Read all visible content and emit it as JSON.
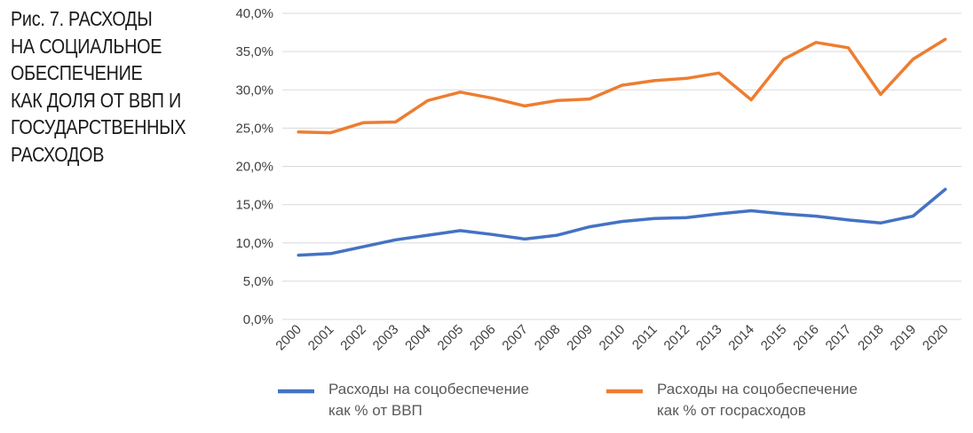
{
  "figure": {
    "title_lines": [
      "Рис. 7. РАСХОДЫ",
      "НА СОЦИАЛЬНОЕ",
      "ОБЕСПЕЧЕНИЕ",
      "КАК ДОЛЯ ОТ ВВП И",
      "ГОСУДАРСТВЕННЫХ",
      "РАСХОДОВ"
    ]
  },
  "chart_data": {
    "type": "line",
    "title": "Рис. 7. РАСХОДЫ НА СОЦИАЛЬНОЕ ОБЕСПЕЧЕНИЕ КАК ДОЛЯ ОТ ВВП И ГОСУДАРСТВЕННЫХ РАСХОДОВ",
    "x": [
      "2000",
      "2001",
      "2002",
      "2003",
      "2004",
      "2005",
      "2006",
      "2007",
      "2008",
      "2009",
      "2010",
      "2011",
      "2012",
      "2013",
      "2014",
      "2015",
      "2016",
      "2017",
      "2018",
      "2019",
      "2020"
    ],
    "ylim": [
      0,
      40
    ],
    "yticks": [
      "0,0%",
      "5,0%",
      "10,0%",
      "15,0%",
      "20,0%",
      "25,0%",
      "30,0%",
      "35,0%",
      "40,0%"
    ],
    "grid": true,
    "legend_position": "bottom",
    "series": [
      {
        "name_lines": [
          "Расходы на соцобеспечение",
          "как % от ВВП"
        ],
        "color": "#4472c4",
        "values": [
          8.4,
          8.6,
          9.5,
          10.4,
          11.0,
          11.6,
          11.1,
          10.5,
          11.0,
          12.1,
          12.8,
          13.2,
          13.3,
          13.8,
          14.2,
          13.8,
          13.5,
          13.0,
          12.6,
          13.5,
          17.0
        ]
      },
      {
        "name_lines": [
          "Расходы на соцобеспечение",
          "как % от госрасходов"
        ],
        "color": "#ed7d31",
        "values": [
          24.5,
          24.4,
          25.7,
          25.8,
          28.6,
          29.7,
          28.9,
          27.9,
          28.6,
          28.8,
          30.6,
          31.2,
          31.5,
          32.2,
          28.7,
          34.0,
          36.2,
          35.5,
          29.4,
          34.0,
          36.6
        ]
      }
    ]
  }
}
